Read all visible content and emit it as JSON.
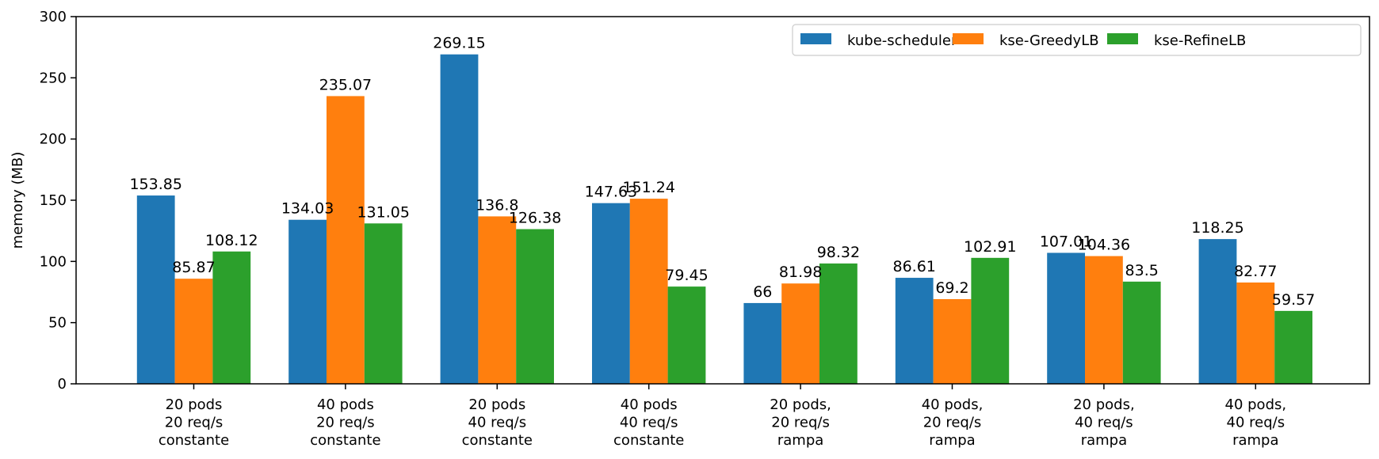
{
  "chart_data": {
    "type": "bar",
    "title": "",
    "xlabel": "",
    "ylabel": "memory (MB)",
    "ylim": [
      0,
      300
    ],
    "yticks": [
      0,
      50,
      100,
      150,
      200,
      250,
      300
    ],
    "grid": false,
    "legend_position": "top-right",
    "categories": [
      [
        "20 pods",
        "20 req/s",
        "constante"
      ],
      [
        "40 pods",
        "20 req/s",
        "constante"
      ],
      [
        "20 pods",
        "40 req/s",
        "constante"
      ],
      [
        "40 pods",
        "40 req/s",
        "constante"
      ],
      [
        "20 pods,",
        "20 req/s",
        "rampa"
      ],
      [
        "40 pods,",
        "20 req/s",
        "rampa"
      ],
      [
        "20 pods,",
        "40 req/s",
        "rampa"
      ],
      [
        "40 pods,",
        "40 req/s",
        "rampa"
      ]
    ],
    "series": [
      {
        "name": "kube-scheduler",
        "color": "#1f77b4",
        "values": [
          153.85,
          134.03,
          269.15,
          147.63,
          66,
          86.61,
          107.01,
          118.25
        ]
      },
      {
        "name": "kse-GreedyLB",
        "color": "#ff7f0e",
        "values": [
          85.87,
          235.07,
          136.8,
          151.24,
          81.98,
          69.2,
          104.36,
          82.77
        ]
      },
      {
        "name": "kse-RefineLB",
        "color": "#2ca02c",
        "values": [
          108.12,
          131.05,
          126.38,
          79.45,
          98.32,
          102.91,
          83.5,
          59.57
        ]
      }
    ]
  }
}
